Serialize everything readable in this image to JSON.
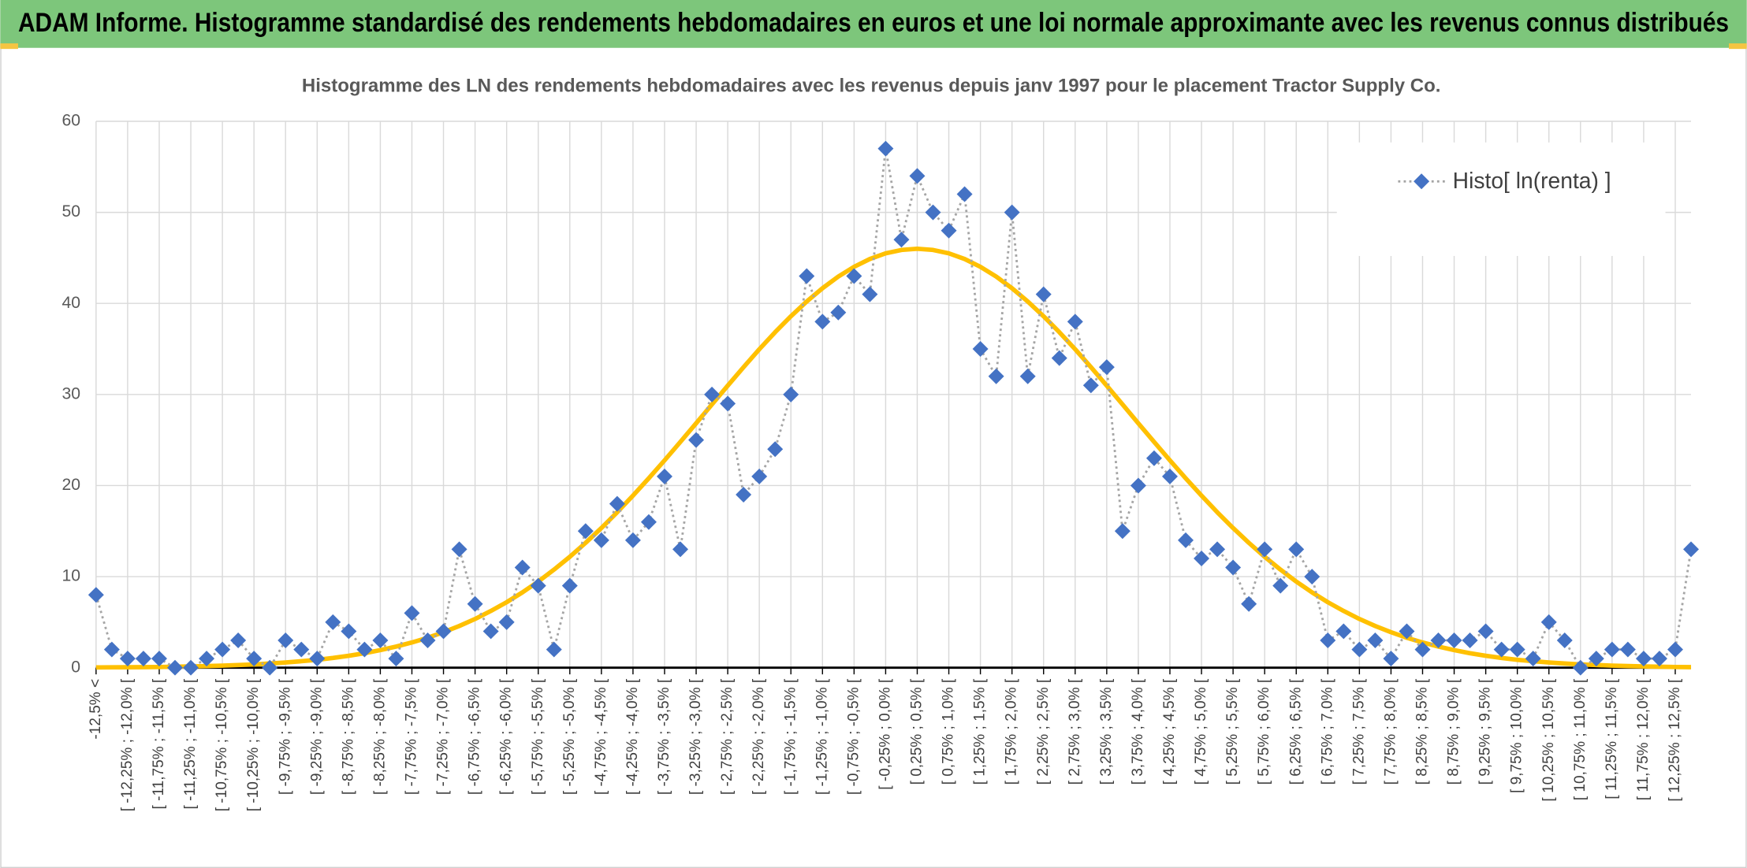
{
  "header": {
    "title": "ADAM Informe. Histogramme standardisé des rendements hebdomadaires en euros et une loi normale approximante avec les revenus connus distribués"
  },
  "chart_data": {
    "type": "line",
    "title": "Histogramme des LN des rendements hebdomadaires avec les revenus depuis janv 1997 pour le placement Tractor Supply Co.",
    "categories": [
      "-12,5% <",
      null,
      "[ -12,25% ; -12,0% [",
      null,
      "[ -11,75% ; -11,5% [",
      null,
      "[ -11,25% ; -11,0% [",
      null,
      "[ -10,75% ; -10,5% [",
      null,
      "[ -10,25% ; -10,0% [",
      null,
      "[ -9,75% ; -9,5% [",
      null,
      "[ -9,25% ; -9,0% [",
      null,
      "[ -8,75% ; -8,5% [",
      null,
      "[ -8,25% ; -8,0% [",
      null,
      "[ -7,75% ; -7,5% [",
      null,
      "[ -7,25% ; -7,0% [",
      null,
      "[ -6,75% ; -6,5% [",
      null,
      "[ -6,25% ; -6,0% [",
      null,
      "[ -5,75% ; -5,5% [",
      null,
      "[ -5,25% ; -5,0% [",
      null,
      "[ -4,75% ; -4,5% [",
      null,
      "[ -4,25% ; -4,0% [",
      null,
      "[ -3,75% ; -3,5% [",
      null,
      "[ -3,25% ; -3,0% [",
      null,
      "[ -2,75% ; -2,5% [",
      null,
      "[ -2,25% ; -2,0% [",
      null,
      "[ -1,75% ; -1,5% [",
      null,
      "[ -1,25% ; -1,0% [",
      null,
      "[ -0,75% ; -0,5% [",
      null,
      "[ -0,25% ; 0,0% [",
      null,
      "[ 0,25% ; 0,5% [",
      null,
      "[ 0,75% ; 1,0% [",
      null,
      "[ 1,25% ; 1,5% [",
      null,
      "[ 1,75% ; 2,0% [",
      null,
      "[ 2,25% ; 2,5% [",
      null,
      "[ 2,75% ; 3,0% [",
      null,
      "[ 3,25% ; 3,5% [",
      null,
      "[ 3,75% ; 4,0% [",
      null,
      "[ 4,25% ; 4,5% [",
      null,
      "[ 4,75% ; 5,0% [",
      null,
      "[ 5,25% ; 5,5% [",
      null,
      "[ 5,75% ; 6,0% [",
      null,
      "[ 6,25% ; 6,5% [",
      null,
      "[ 6,75% ; 7,0% [",
      null,
      "[ 7,25% ; 7,5% [",
      null,
      "[ 7,75% ; 8,0% [",
      null,
      "[ 8,25% ; 8,5% [",
      null,
      "[ 8,75% ; 9,0% [",
      null,
      "[ 9,25% ; 9,5% [",
      null,
      "[ 9,75% ; 10,0% [",
      null,
      "[ 10,25% ; 10,5% [",
      null,
      "[ 10,75% ; 11,0% [",
      null,
      "[ 11,25% ; 11,5% [",
      null,
      "[ 11,75% ; 12,0% [",
      null,
      "[ 12,25% ; 12,5% [",
      null
    ],
    "series": [
      {
        "name": "Histo[ ln(renta) ]",
        "color": "#4472c4",
        "line_color": "#a5a5a5",
        "values": [
          8,
          2,
          1,
          1,
          1,
          0,
          0,
          1,
          2,
          3,
          1,
          0,
          3,
          2,
          1,
          5,
          4,
          2,
          3,
          1,
          6,
          3,
          4,
          13,
          7,
          4,
          5,
          11,
          9,
          2,
          9,
          15,
          14,
          18,
          14,
          16,
          21,
          13,
          25,
          30,
          29,
          19,
          21,
          24,
          30,
          43,
          38,
          39,
          43,
          41,
          57,
          47,
          54,
          50,
          48,
          52,
          35,
          32,
          50,
          32,
          41,
          34,
          38,
          31,
          33,
          15,
          20,
          23,
          21,
          14,
          12,
          13,
          11,
          7,
          13,
          9,
          13,
          10,
          3,
          4,
          2,
          3,
          1,
          4,
          2,
          3,
          3,
          3,
          4,
          2,
          2,
          1,
          5,
          3,
          0,
          1,
          2,
          2,
          1,
          1,
          2,
          13
        ]
      },
      {
        "color": "#ffc000",
        "values": [
          0.03,
          0.04,
          0.05,
          0.06,
          0.08,
          0.11,
          0.14,
          0.18,
          0.23,
          0.29,
          0.36,
          0.46,
          0.57,
          0.71,
          0.87,
          1.07,
          1.31,
          1.59,
          1.93,
          2.32,
          2.77,
          3.29,
          3.9,
          4.58,
          5.35,
          6.23,
          7.19,
          8.27,
          9.46,
          10.77,
          12.18,
          13.71,
          15.34,
          17.07,
          18.9,
          20.8,
          22.77,
          24.79,
          26.84,
          28.91,
          30.97,
          33.0,
          34.97,
          36.84,
          38.59,
          40.21,
          41.67,
          42.95,
          44.02,
          44.88,
          45.5,
          45.87,
          46,
          45.87,
          45.5,
          44.88,
          44.02,
          42.95,
          41.67,
          40.21,
          38.59,
          36.84,
          34.97,
          33.0,
          30.97,
          28.91,
          26.84,
          24.79,
          22.77,
          20.8,
          18.9,
          17.07,
          15.34,
          13.71,
          12.18,
          10.77,
          9.46,
          8.27,
          7.19,
          6.23,
          5.35,
          4.58,
          3.9,
          3.29,
          2.77,
          2.32,
          1.93,
          1.59,
          1.31,
          1.07,
          0.87,
          0.71,
          0.57,
          0.46,
          0.36,
          0.29,
          0.23,
          0.18,
          0.14,
          0.11,
          0.08,
          0.06
        ]
      }
    ],
    "ylim": [
      0,
      60
    ],
    "yticks": [
      0,
      10,
      20,
      30,
      40,
      50,
      60
    ],
    "grid": true,
    "legend": "top-right"
  }
}
